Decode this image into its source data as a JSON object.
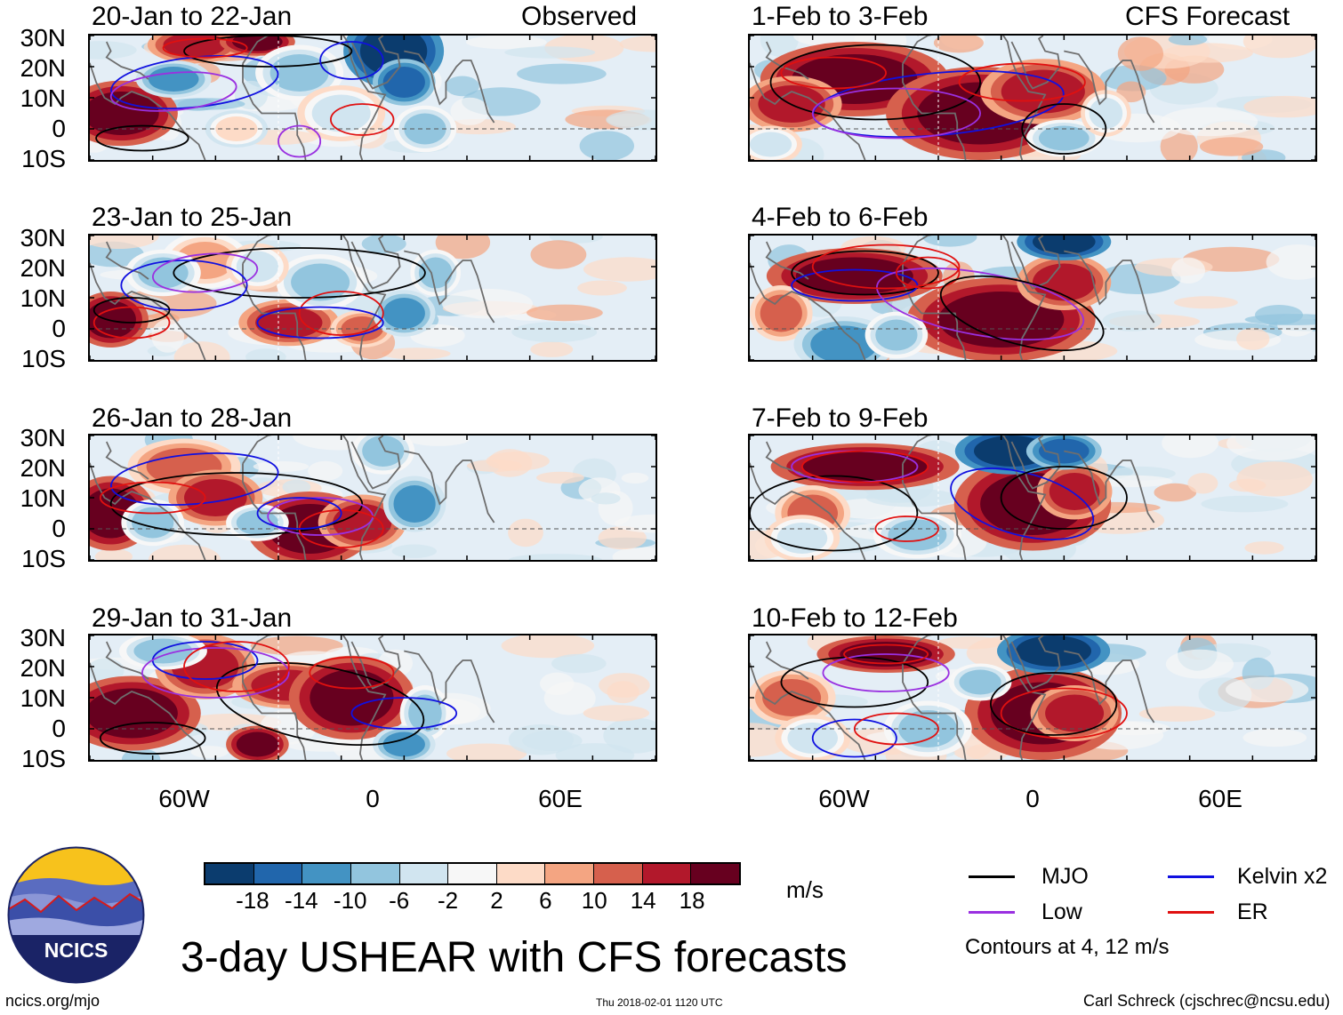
{
  "figure": {
    "title": "3-day USHEAR with CFS forecasts",
    "left_label": "Observed",
    "right_label": "CFS Forecast",
    "footer_left": "ncics.org/mjo",
    "footer_center": "Thu 2018-02-01 1120 UTC",
    "footer_right": "Carl Schreck (cjschrec@ncsu.edu)",
    "logo_text": "NCICS"
  },
  "axes": {
    "lat_labels": [
      "30N",
      "20N",
      "10N",
      "0",
      "10S"
    ],
    "lon_labels": [
      "60W",
      "0",
      "60E"
    ]
  },
  "panels": {
    "observed": [
      {
        "title": "20-Jan to 22-Jan"
      },
      {
        "title": "23-Jan to 25-Jan"
      },
      {
        "title": "26-Jan to 28-Jan"
      },
      {
        "title": "29-Jan to 31-Jan"
      }
    ],
    "forecast": [
      {
        "title": "1-Feb to 3-Feb"
      },
      {
        "title": "4-Feb to 6-Feb"
      },
      {
        "title": "7-Feb to 9-Feb"
      },
      {
        "title": "10-Feb to 12-Feb"
      }
    ]
  },
  "colorbar": {
    "units": "m/s",
    "ticks": [
      "-18",
      "-14",
      "-10",
      "-6",
      "-2",
      "2",
      "6",
      "10",
      "14",
      "18"
    ],
    "colors": [
      "#0b3c6e",
      "#2166ac",
      "#4393c3",
      "#92c5de",
      "#d1e5f0",
      "#f7f7f7",
      "#fddbc7",
      "#f4a582",
      "#d6604d",
      "#b2182b",
      "#67001f"
    ]
  },
  "legend": {
    "mjo": {
      "label": "MJO",
      "color": "#000000"
    },
    "kelvin": {
      "label": "Kelvin x2",
      "color": "#1010e0"
    },
    "low": {
      "label": "Low",
      "color": "#9a30e0"
    },
    "er": {
      "label": "ER",
      "color": "#e01010"
    },
    "note": "Contours at 4, 12 m/s"
  }
}
